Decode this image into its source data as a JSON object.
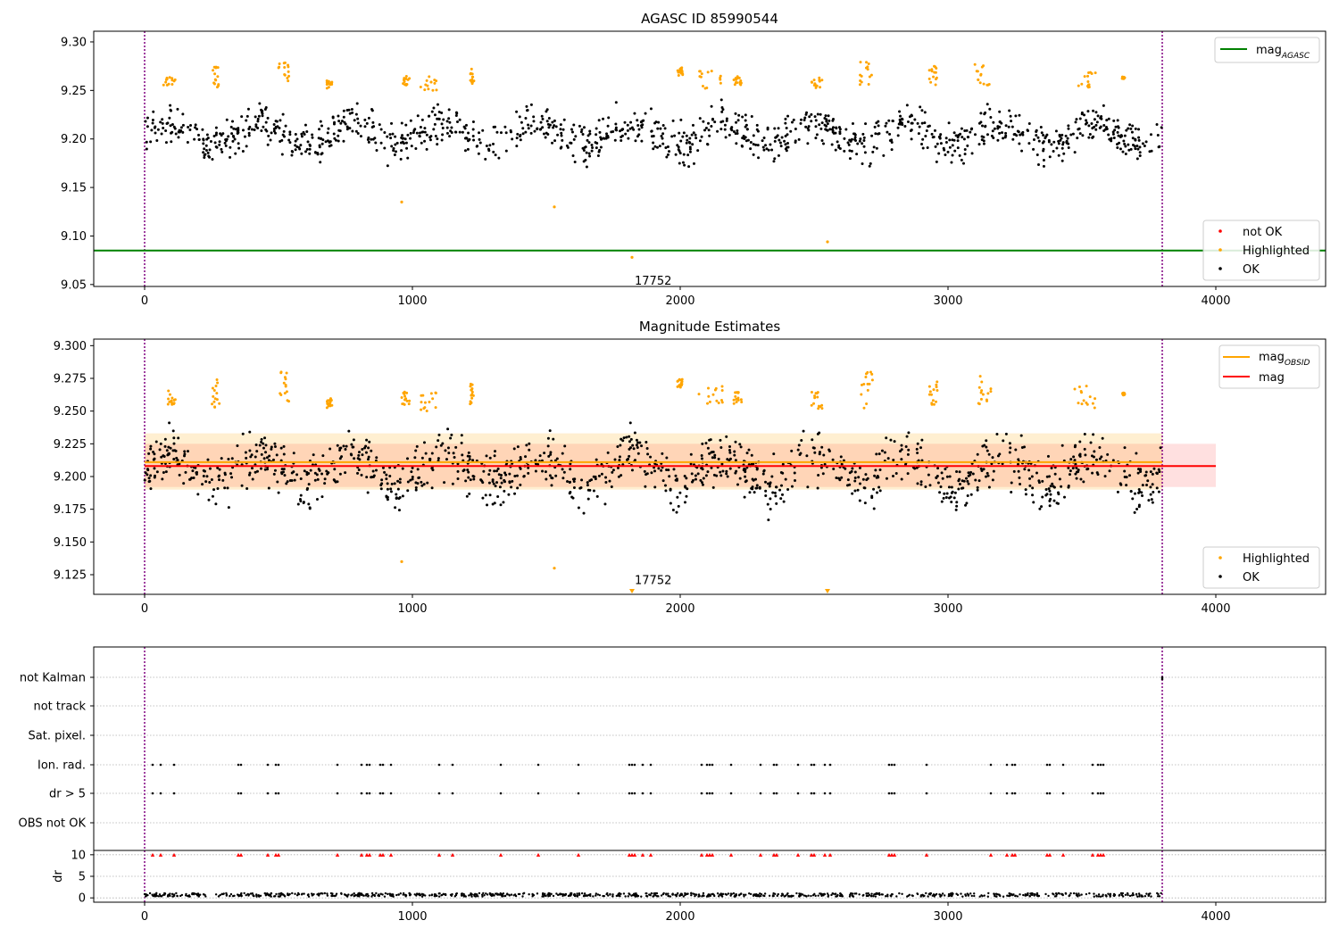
{
  "chart_data": [
    {
      "type": "scatter",
      "title": "AGASC ID 85990544",
      "xlim": [
        -190,
        4410
      ],
      "ylim": [
        9.048,
        9.311
      ],
      "xticks": [
        "0",
        "1000",
        "2000",
        "3000",
        "4000"
      ],
      "yticks": [
        "9.05",
        "9.10",
        "9.15",
        "9.20",
        "9.25",
        "9.30"
      ],
      "vlines_x": [
        0,
        3800
      ],
      "hline_agasc": 9.085,
      "legend_lines": [
        {
          "label_main": "mag",
          "label_sub": "AGASC",
          "color": "#008000"
        }
      ],
      "legend_points": [
        {
          "label": "not OK",
          "color": "#ff0000"
        },
        {
          "label": "Highlighted",
          "color": "#ffa500"
        },
        {
          "label": "OK",
          "color": "#000000"
        }
      ],
      "annotation": {
        "text": "17752",
        "x": 1820,
        "y": 9.057
      },
      "outliers": [
        [
          960,
          9.135
        ],
        [
          1530,
          9.13
        ],
        [
          1820,
          9.078
        ],
        [
          2550,
          9.094
        ]
      ],
      "highlighted_groups": [
        [
          70,
          115,
          9.255,
          9.268
        ],
        [
          250,
          280,
          9.252,
          9.275
        ],
        [
          500,
          540,
          9.255,
          9.28
        ],
        [
          680,
          700,
          9.252,
          9.26
        ],
        [
          960,
          990,
          9.255,
          9.265
        ],
        [
          1030,
          1100,
          9.25,
          9.265
        ],
        [
          1215,
          1230,
          9.255,
          9.272
        ],
        [
          1990,
          2010,
          9.265,
          9.275
        ],
        [
          2070,
          2160,
          9.252,
          9.27
        ],
        [
          2200,
          2230,
          9.255,
          9.265
        ],
        [
          2490,
          2530,
          9.252,
          9.265
        ],
        [
          2670,
          2720,
          9.252,
          9.28
        ],
        [
          2930,
          2960,
          9.255,
          9.275
        ],
        [
          3100,
          3160,
          9.255,
          9.278
        ],
        [
          3470,
          3560,
          9.252,
          9.27
        ],
        [
          3650,
          3660,
          9.262,
          9.264
        ]
      ],
      "ok_range": [
        0,
        3800
      ],
      "ok_mean": 9.205
    },
    {
      "type": "scatter",
      "title": "Magnitude Estimates",
      "xlim": [
        -190,
        4410
      ],
      "ylim": [
        9.11,
        9.305
      ],
      "xticks": [
        "0",
        "1000",
        "2000",
        "3000",
        "4000"
      ],
      "yticks": [
        "9.125",
        "9.150",
        "9.175",
        "9.200",
        "9.225",
        "9.250",
        "9.275",
        "9.300"
      ],
      "vlines_x": [
        0,
        3800
      ],
      "mag_line": {
        "value": 9.208,
        "band": [
          9.192,
          9.225
        ],
        "x": [
          0,
          4000
        ]
      },
      "mag_obsid_line": {
        "value": 9.211,
        "band": [
          9.19,
          9.233
        ],
        "x": [
          0,
          3800
        ]
      },
      "legend_lines": [
        {
          "label_main": "mag",
          "label_sub": "OBSID",
          "color": "#ffa500"
        },
        {
          "label_main": "mag",
          "label_sub": "",
          "color": "#ff0000"
        }
      ],
      "legend_points": [
        {
          "label": "Highlighted",
          "color": "#ffa500"
        },
        {
          "label": "OK",
          "color": "#000000"
        }
      ],
      "annotation": {
        "text": "17752",
        "x": 1820,
        "y": 9.118
      },
      "outliers": [
        [
          960,
          9.135
        ],
        [
          1530,
          9.13
        ]
      ],
      "offscale_markers": [
        1820,
        2550
      ]
    },
    {
      "type": "scatter",
      "title": "",
      "xlim": [
        -190,
        4410
      ],
      "xticks": [
        "0",
        "1000",
        "2000",
        "3000",
        "4000"
      ],
      "flag_rows": [
        "not Kalman",
        "not track",
        "Sat. pixel.",
        "Ion. rad.",
        "dr > 5",
        "OBS not OK"
      ],
      "flag_x": [
        30,
        60,
        110,
        350,
        360,
        460,
        490,
        500,
        720,
        810,
        830,
        840,
        880,
        890,
        920,
        1100,
        1150,
        1330,
        1470,
        1620,
        1810,
        1820,
        1830,
        1860,
        1890,
        2080,
        2100,
        2110,
        2120,
        2190,
        2300,
        2350,
        2360,
        2440,
        2490,
        2500,
        2540,
        2560,
        2780,
        2790,
        2800,
        2920,
        3160,
        3220,
        3240,
        3250,
        3370,
        3380,
        3430,
        3540,
        3560,
        3570,
        3580
      ],
      "dr_ylabel": "dr",
      "dr_yticks": [
        "0",
        "5",
        "10"
      ],
      "dr_ylim": [
        -1,
        11
      ]
    }
  ]
}
